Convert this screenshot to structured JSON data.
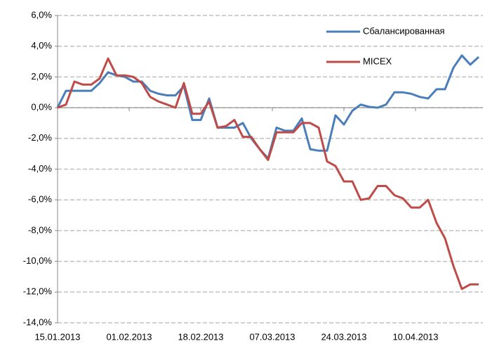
{
  "chart_data": {
    "type": "line",
    "x": [
      "15.01.2013",
      "17.01.2013",
      "19.01.2013",
      "21.01.2013",
      "23.01.2013",
      "25.01.2013",
      "27.01.2013",
      "29.01.2013",
      "31.01.2013",
      "02.02.2013",
      "04.02.2013",
      "06.02.2013",
      "08.02.2013",
      "10.02.2013",
      "12.02.2013",
      "14.02.2013",
      "16.02.2013",
      "18.02.2013",
      "20.02.2013",
      "22.02.2013",
      "24.02.2013",
      "26.02.2013",
      "28.02.2013",
      "02.03.2013",
      "04.03.2013",
      "06.03.2013",
      "08.03.2013",
      "10.03.2013",
      "12.03.2013",
      "14.03.2013",
      "16.03.2013",
      "18.03.2013",
      "20.03.2013",
      "22.03.2013",
      "24.03.2013",
      "26.03.2013",
      "28.03.2013",
      "30.03.2013",
      "01.04.2013",
      "03.04.2013",
      "05.04.2013",
      "07.04.2013",
      "09.04.2013",
      "11.04.2013",
      "13.04.2013",
      "15.04.2013",
      "17.04.2013",
      "19.04.2013",
      "21.04.2013",
      "23.04.2013",
      "25.04.2013"
    ],
    "series": [
      {
        "name": "Сбалансированная",
        "color": "#4a7ebb",
        "values": [
          0,
          1.1,
          1.1,
          1.1,
          1.1,
          1.6,
          2.3,
          2.1,
          2.0,
          1.7,
          1.7,
          1.1,
          0.9,
          0.8,
          0.8,
          1.4,
          -0.8,
          -0.8,
          0.6,
          -1.3,
          -1.3,
          -1.3,
          -1.0,
          -2.0,
          -2.7,
          -3.3,
          -1.3,
          -1.5,
          -1.5,
          -0.7,
          -2.7,
          -2.8,
          -2.8,
          -0.5,
          -1.1,
          -0.2,
          0.2,
          0.05,
          0,
          0.2,
          1.0,
          1.0,
          0.9,
          0.7,
          0.6,
          1.2,
          1.2,
          2.6,
          3.4,
          2.8,
          3.3
        ]
      },
      {
        "name": "MICEX",
        "color": "#be4b48",
        "values": [
          0,
          0.2,
          1.7,
          1.5,
          1.5,
          1.9,
          3.2,
          2.1,
          2.1,
          2.0,
          1.6,
          0.7,
          0.4,
          0.2,
          0,
          1.6,
          -0.4,
          -0.4,
          0.4,
          -1.3,
          -1.2,
          -0.8,
          -1.9,
          -1.9,
          -2.7,
          -3.4,
          -1.6,
          -1.6,
          -1.6,
          -1.0,
          -1.0,
          -1.3,
          -3.5,
          -3.8,
          -4.8,
          -4.8,
          -6.0,
          -5.9,
          -5.1,
          -5.1,
          -5.7,
          -5.9,
          -6.5,
          -6.5,
          -6.0,
          -7.5,
          -8.5,
          -10.3,
          -11.8,
          -11.5,
          -11.5
        ]
      }
    ],
    "xlim": [
      "15.01.2013",
      "26.04.2013"
    ],
    "xticks": [
      "15.01.2013",
      "01.02.2013",
      "18.02.2013",
      "07.03.2013",
      "24.03.2013",
      "10.04.2013"
    ],
    "ylim": [
      -14,
      6
    ],
    "yticks": [
      {
        "value": 6,
        "label": "6,0%"
      },
      {
        "value": 4,
        "label": "4,0%"
      },
      {
        "value": 2,
        "label": "2,0%"
      },
      {
        "value": 0,
        "label": "0,0%"
      },
      {
        "value": -2,
        "label": "-2,0%"
      },
      {
        "value": -4,
        "label": "-4,0%"
      },
      {
        "value": -6,
        "label": "-6,0%"
      },
      {
        "value": -8,
        "label": "-8,0%"
      },
      {
        "value": -10,
        "label": "-10,0%"
      },
      {
        "value": -12,
        "label": "-12,0%"
      },
      {
        "value": -14,
        "label": "-14,0%"
      }
    ],
    "grid": true,
    "legend": "top-right"
  }
}
